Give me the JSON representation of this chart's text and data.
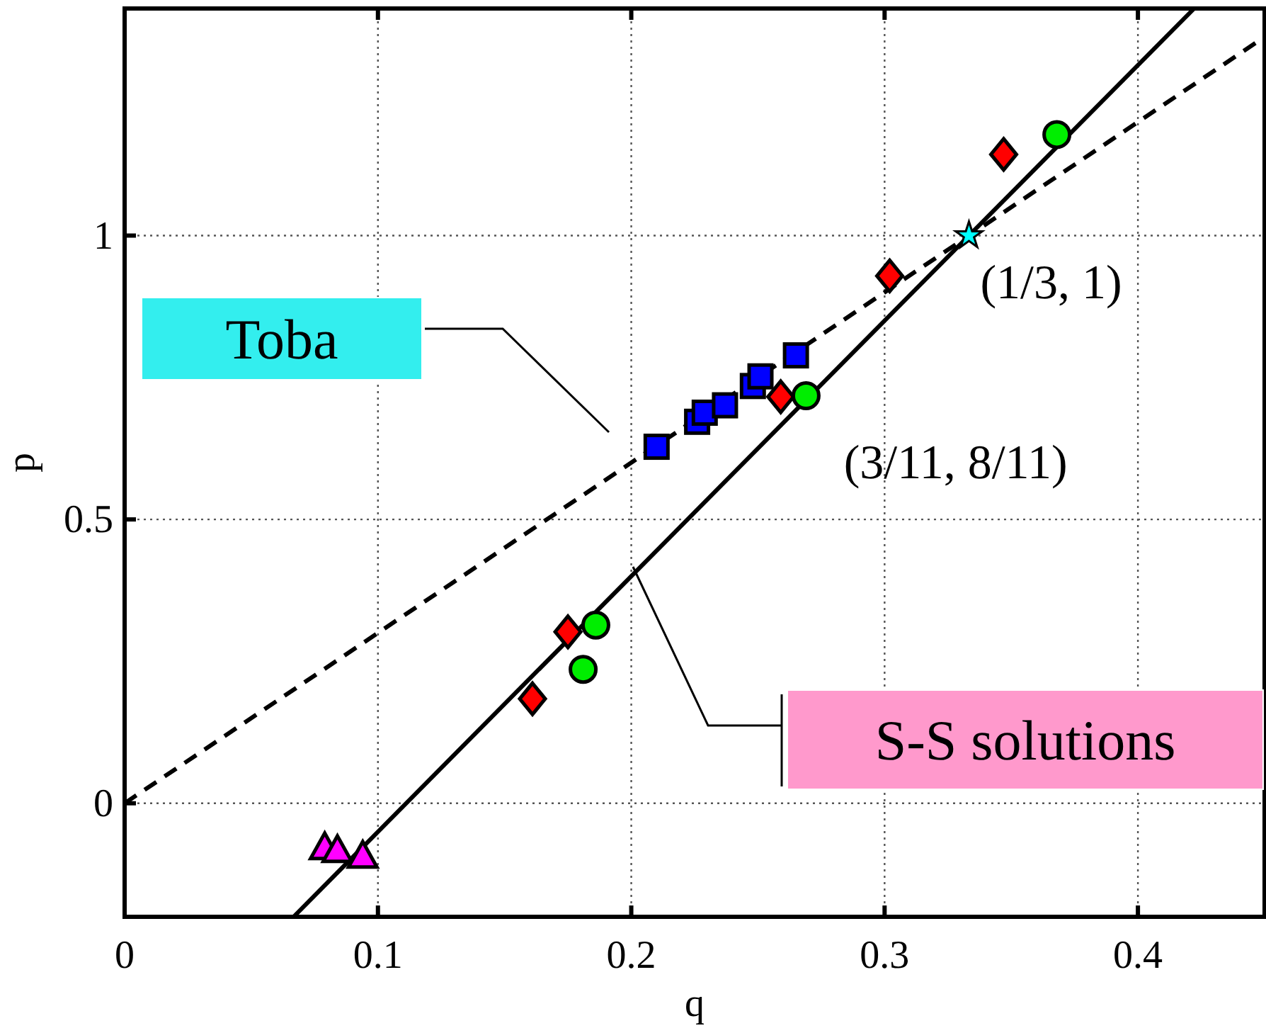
{
  "chart_data": {
    "type": "scatter",
    "xlabel": "q",
    "ylabel": "p",
    "xlim": [
      0,
      0.45
    ],
    "ylim": [
      -0.2,
      1.4
    ],
    "xticks": [
      0,
      0.1,
      0.2,
      0.3,
      0.4
    ],
    "yticks": [
      0,
      0.5,
      1
    ],
    "grid": true,
    "series": [
      {
        "type": "line",
        "color": "#000000",
        "marker": "none",
        "line_style": "solid",
        "x": [
          0.0667,
          0.4222
        ],
        "values": [
          -0.2,
          1.4
        ]
      },
      {
        "type": "line",
        "color": "#000000",
        "marker": "none",
        "line_style": "dashed",
        "x": [
          0,
          0.45
        ],
        "values": [
          0,
          1.35
        ]
      },
      {
        "color": "#ff00ff",
        "marker": "triangle",
        "x": [
          0.079,
          0.084,
          0.094
        ],
        "values": [
          -0.08,
          -0.085,
          -0.095
        ]
      },
      {
        "color": "#ff0000",
        "marker": "diamond",
        "x": [
          0.161,
          0.175,
          0.259,
          0.302,
          0.347
        ],
        "values": [
          0.184,
          0.302,
          0.716,
          0.929,
          1.143
        ]
      },
      {
        "color": "#0000ff",
        "marker": "square",
        "x": [
          0.21,
          0.226,
          0.229,
          0.237,
          0.248,
          0.251,
          0.265
        ],
        "values": [
          0.628,
          0.672,
          0.688,
          0.701,
          0.735,
          0.752,
          0.789
        ]
      },
      {
        "color": "#00ee00",
        "marker": "circle",
        "x": [
          0.181,
          0.186,
          0.269,
          0.368
        ],
        "values": [
          0.236,
          0.314,
          0.718,
          1.178
        ]
      },
      {
        "color": "#00ffff",
        "marker": "star",
        "x": [
          0.3333
        ],
        "values": [
          1
        ]
      }
    ],
    "annotations": [
      {
        "text": "(1/3, 1)",
        "x": 0.3333,
        "y": 1
      },
      {
        "text": "(3/11, 8/11)",
        "x": 0.2727,
        "y": 0.7273
      },
      "Toba",
      "S-S solutions"
    ]
  }
}
